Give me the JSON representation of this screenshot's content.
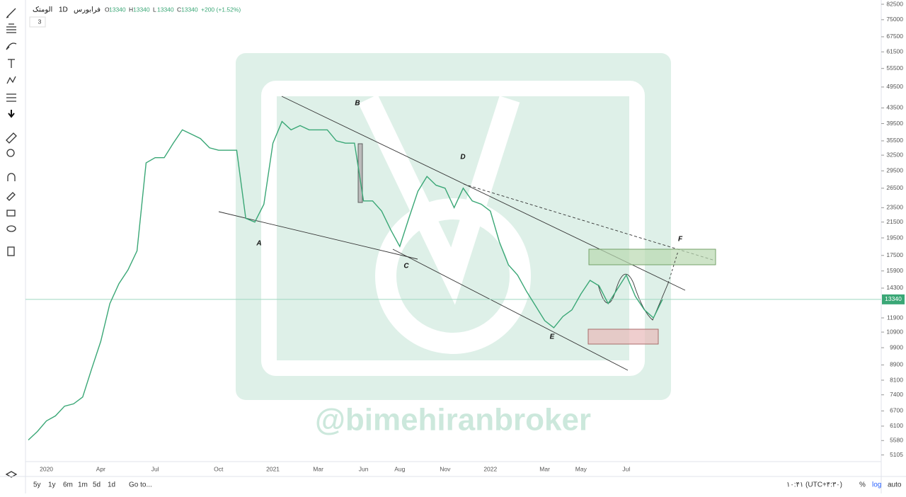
{
  "chart_data": {
    "type": "line",
    "header": {
      "symbol": "الومتک",
      "interval": "1D",
      "exchange": "فرابورس",
      "ohlc": [
        {
          "label": "O",
          "value": 13340
        },
        {
          "label": "H",
          "value": 13340
        },
        {
          "label": "L",
          "value": 13340
        },
        {
          "label": "C",
          "value": 13340
        }
      ],
      "change": "+200 (+1.52%)",
      "indicators": "3"
    },
    "categories": [
      null,
      null,
      "2020",
      null,
      null,
      null,
      null,
      null,
      "Apr",
      null,
      null,
      null,
      null,
      null,
      "Jul",
      null,
      null,
      null,
      null,
      null,
      null,
      "Oct",
      null,
      null,
      null,
      null,
      null,
      "2021",
      null,
      null,
      null,
      null,
      "Mar",
      null,
      null,
      null,
      null,
      "Jun",
      null,
      null,
      null,
      "Aug",
      null,
      null,
      null,
      null,
      "Nov",
      null,
      null,
      null,
      null,
      "2022",
      null,
      null,
      null,
      null,
      null,
      "Mar",
      null,
      null,
      null,
      "May",
      null,
      null,
      null,
      null,
      "Jul",
      null,
      null,
      null,
      null
    ],
    "series": [
      {
        "name": "الومتک",
        "color": "#3aa776",
        "values": [
          5600,
          5900,
          6300,
          6500,
          6900,
          7000,
          7300,
          8700,
          10300,
          13000,
          14700,
          16000,
          18000,
          31000,
          32000,
          32000,
          35000,
          38000,
          37000,
          36000,
          34000,
          33500,
          33500,
          33500,
          22000,
          21500,
          24000,
          35000,
          40000,
          38000,
          39000,
          38000,
          38000,
          38000,
          35500,
          35000,
          35000,
          24500,
          24500,
          23000,
          20500,
          18500,
          22000,
          26000,
          28500,
          27000,
          26500,
          23500,
          26500,
          24500,
          24000,
          23000,
          19000,
          16500,
          15500,
          14000,
          12800,
          11700,
          11200,
          12000,
          12500,
          13800,
          15000,
          14500,
          13000,
          14200,
          15500,
          13600,
          12500,
          11900,
          13340
        ]
      }
    ],
    "last_price": 13340,
    "ylim": [
      4900,
      84700
    ],
    "log_scale": true,
    "yticks": [
      82500,
      75000,
      67500,
      61500,
      55500,
      49500,
      43500,
      39500,
      35500,
      32500,
      29500,
      26500,
      23500,
      21500,
      19500,
      17500,
      15900,
      14300,
      11900,
      10900,
      9900,
      8900,
      8100,
      7400,
      6700,
      6100,
      5580,
      5105
    ],
    "wave_labels": [
      "A",
      "B",
      "C",
      "D",
      "E",
      "F"
    ],
    "watermark": "@bimehiranbroker",
    "ranges": [
      "5y",
      "1y",
      "6m",
      "1m",
      "5d",
      "1d"
    ],
    "goto": "Go to...",
    "clock": "۱۰:۴۱ (UTC+۴:۳۰)",
    "scale_buttons": [
      "%",
      "log",
      "auto"
    ]
  }
}
